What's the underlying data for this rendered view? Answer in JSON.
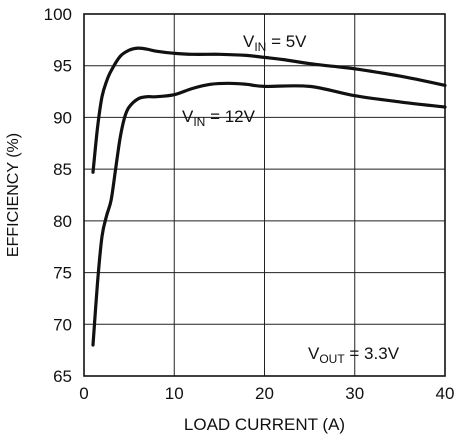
{
  "chart_data": {
    "type": "line",
    "xlabel": "LOAD CURRENT (A)",
    "ylabel": "EFFICIENCY (%)",
    "xlim": [
      0,
      40
    ],
    "ylim": [
      65,
      100
    ],
    "xticks": [
      0,
      10,
      20,
      30,
      40
    ],
    "yticks": [
      65,
      70,
      75,
      80,
      85,
      90,
      95,
      100
    ],
    "grid": true,
    "series": [
      {
        "name": "VIN = 5V",
        "label_main": "V",
        "label_sub": "IN",
        "label_tail": " = 5V",
        "x": [
          1,
          1.5,
          2,
          2.5,
          3,
          4,
          5,
          6,
          7,
          8,
          10,
          12,
          15,
          18,
          20,
          22,
          25,
          28,
          30,
          35,
          40
        ],
        "y": [
          84.7,
          89.0,
          92.0,
          93.5,
          94.5,
          95.9,
          96.5,
          96.7,
          96.6,
          96.4,
          96.2,
          96.1,
          96.1,
          96.0,
          95.8,
          95.6,
          95.2,
          94.9,
          94.7,
          94.0,
          93.1
        ]
      },
      {
        "name": "VIN = 12V",
        "label_main": "V",
        "label_sub": "IN",
        "label_tail": " = 12V",
        "x": [
          1,
          1.5,
          2,
          2.5,
          3,
          3.5,
          4,
          4.5,
          5,
          6,
          7,
          8,
          10,
          12,
          14,
          16,
          18,
          20,
          25,
          30,
          35,
          40
        ],
        "y": [
          68.0,
          74.0,
          78.5,
          80.5,
          82.0,
          85.0,
          88.0,
          90.0,
          91.0,
          91.8,
          92.0,
          92.0,
          92.2,
          92.8,
          93.2,
          93.3,
          93.2,
          93.0,
          93.0,
          92.1,
          91.5,
          91.0
        ]
      }
    ],
    "annotation": {
      "main": "V",
      "sub": "OUT",
      "tail": " = 3.3V"
    }
  }
}
